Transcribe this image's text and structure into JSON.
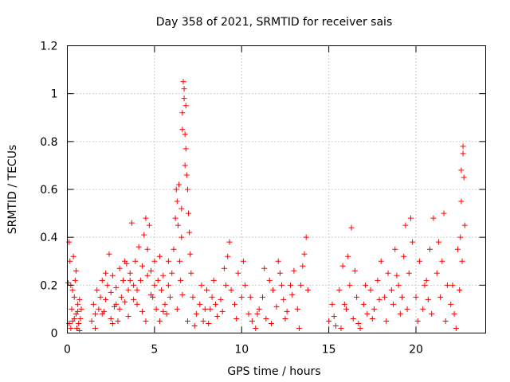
{
  "chart_data": {
    "type": "scatter",
    "title": "Day 358 of 2021, SRMTID for receiver sais",
    "xlabel": "GPS time / hours",
    "ylabel": "SRMTID / TECUs",
    "xlim": [
      0,
      24
    ],
    "ylim": [
      0,
      1.2
    ],
    "xticks": [
      0,
      5,
      10,
      15,
      20
    ],
    "xtick_labels": [
      "0",
      "5",
      "10",
      "15",
      "20"
    ],
    "yticks": [
      0,
      0.2,
      0.4,
      0.6,
      0.8,
      1,
      1.2
    ],
    "ytick_labels": [
      "0",
      "0.2",
      "0.4",
      "0.6",
      "0.8",
      "1",
      "1.2"
    ],
    "grid": true,
    "marker": "plus",
    "series": [
      {
        "name": "SRMTID",
        "color": "#ff0000",
        "points": [
          [
            0.05,
            0.21
          ],
          [
            0.1,
            0.38
          ],
          [
            0.15,
            0.3
          ],
          [
            0.2,
            0.2
          ],
          [
            0.25,
            0.1
          ],
          [
            0.3,
            0.05
          ],
          [
            0.35,
            0.32
          ],
          [
            0.4,
            0.15
          ],
          [
            0.45,
            0.22
          ],
          [
            0.5,
            0.08
          ],
          [
            0.55,
            0.02
          ],
          [
            0.6,
            0.12
          ],
          [
            0.65,
            0.04
          ],
          [
            0.7,
            0.14
          ],
          [
            0.75,
            0.06
          ],
          [
            0.8,
            0.1
          ],
          [
            0.1,
            0.04
          ],
          [
            0.2,
            0.02
          ],
          [
            0.3,
            0.18
          ],
          [
            0.4,
            0.06
          ],
          [
            0.5,
            0.26
          ],
          [
            0.6,
            0.09
          ],
          [
            0.7,
            0.01
          ],
          [
            1.4,
            0.05
          ],
          [
            1.5,
            0.12
          ],
          [
            1.6,
            0.08
          ],
          [
            1.7,
            0.18
          ],
          [
            1.8,
            0.1
          ],
          [
            1.9,
            0.15
          ],
          [
            2.0,
            0.22
          ],
          [
            2.1,
            0.09
          ],
          [
            2.2,
            0.14
          ],
          [
            2.3,
            0.2
          ],
          [
            2.4,
            0.33
          ],
          [
            2.5,
            0.17
          ],
          [
            2.6,
            0.24
          ],
          [
            2.7,
            0.11
          ],
          [
            2.8,
            0.19
          ],
          [
            2.9,
            0.05
          ],
          [
            3.0,
            0.27
          ],
          [
            3.1,
            0.15
          ],
          [
            3.2,
            0.22
          ],
          [
            3.3,
            0.13
          ],
          [
            3.4,
            0.29
          ],
          [
            3.5,
            0.18
          ],
          [
            3.6,
            0.25
          ],
          [
            3.7,
            0.46
          ],
          [
            3.8,
            0.2
          ],
          [
            3.9,
            0.3
          ],
          [
            4.0,
            0.12
          ],
          [
            4.1,
            0.36
          ],
          [
            4.2,
            0.22
          ],
          [
            4.3,
            0.28
          ],
          [
            4.4,
            0.41
          ],
          [
            4.5,
            0.48
          ],
          [
            4.6,
            0.35
          ],
          [
            4.7,
            0.45
          ],
          [
            4.8,
            0.26
          ],
          [
            4.9,
            0.15
          ],
          [
            5.0,
            0.3
          ],
          [
            5.1,
            0.1
          ],
          [
            5.2,
            0.22
          ],
          [
            5.3,
            0.32
          ],
          [
            5.4,
            0.18
          ],
          [
            5.5,
            0.24
          ],
          [
            5.6,
            0.12
          ],
          [
            5.7,
            0.08
          ],
          [
            5.8,
            0.2
          ],
          [
            5.9,
            0.15
          ],
          [
            1.6,
            0.02
          ],
          [
            2.0,
            0.08
          ],
          [
            2.5,
            0.06
          ],
          [
            3.0,
            0.1
          ],
          [
            3.5,
            0.07
          ],
          [
            4.0,
            0.18
          ],
          [
            4.5,
            0.05
          ],
          [
            5.0,
            0.2
          ],
          [
            5.5,
            0.09
          ],
          [
            2.2,
            0.25
          ],
          [
            2.8,
            0.12
          ],
          [
            3.3,
            0.3
          ],
          [
            3.8,
            0.14
          ],
          [
            4.3,
            0.09
          ],
          [
            4.8,
            0.16
          ],
          [
            5.3,
            0.05
          ],
          [
            5.8,
            0.3
          ],
          [
            2.6,
            0.04
          ],
          [
            3.6,
            0.22
          ],
          [
            4.6,
            0.24
          ],
          [
            6.0,
            0.25
          ],
          [
            6.1,
            0.35
          ],
          [
            6.2,
            0.48
          ],
          [
            6.25,
            0.6
          ],
          [
            6.3,
            0.55
          ],
          [
            6.35,
            0.45
          ],
          [
            6.4,
            0.62
          ],
          [
            6.45,
            0.3
          ],
          [
            6.5,
            0.22
          ],
          [
            6.55,
            0.4
          ],
          [
            6.6,
            0.85
          ],
          [
            6.65,
            1.05
          ],
          [
            6.7,
            0.98
          ],
          [
            6.75,
            0.83
          ],
          [
            6.8,
            0.77
          ],
          [
            6.85,
            0.66
          ],
          [
            6.9,
            0.6
          ],
          [
            6.95,
            0.5
          ],
          [
            7.0,
            0.42
          ],
          [
            7.05,
            0.33
          ],
          [
            7.1,
            0.25
          ],
          [
            6.3,
            0.1
          ],
          [
            6.6,
            0.16
          ],
          [
            6.9,
            0.05
          ],
          [
            6.7,
            1.02
          ],
          [
            6.6,
            0.92
          ],
          [
            6.8,
            0.95
          ],
          [
            6.75,
            0.7
          ],
          [
            6.55,
            0.52
          ],
          [
            7.2,
            0.15
          ],
          [
            7.4,
            0.08
          ],
          [
            7.6,
            0.12
          ],
          [
            7.8,
            0.05
          ],
          [
            8.0,
            0.18
          ],
          [
            8.2,
            0.1
          ],
          [
            8.4,
            0.22
          ],
          [
            8.6,
            0.07
          ],
          [
            8.8,
            0.14
          ],
          [
            9.0,
            0.27
          ],
          [
            9.2,
            0.32
          ],
          [
            9.4,
            0.18
          ],
          [
            9.6,
            0.12
          ],
          [
            9.8,
            0.25
          ],
          [
            10.0,
            0.15
          ],
          [
            10.2,
            0.2
          ],
          [
            10.4,
            0.08
          ],
          [
            10.6,
            0.05
          ],
          [
            10.8,
            0.02
          ],
          [
            11.0,
            0.1
          ],
          [
            11.2,
            0.15
          ],
          [
            11.4,
            0.06
          ],
          [
            11.6,
            0.22
          ],
          [
            11.8,
            0.18
          ],
          [
            12.0,
            0.11
          ],
          [
            12.2,
            0.25
          ],
          [
            12.4,
            0.14
          ],
          [
            12.6,
            0.09
          ],
          [
            12.8,
            0.2
          ],
          [
            13.0,
            0.26
          ],
          [
            13.2,
            0.1
          ],
          [
            13.4,
            0.2
          ],
          [
            13.6,
            0.33
          ],
          [
            13.8,
            0.18
          ],
          [
            7.3,
            0.03
          ],
          [
            7.7,
            0.2
          ],
          [
            8.1,
            0.04
          ],
          [
            8.5,
            0.12
          ],
          [
            8.9,
            0.09
          ],
          [
            9.3,
            0.38
          ],
          [
            9.7,
            0.06
          ],
          [
            10.1,
            0.3
          ],
          [
            10.5,
            0.15
          ],
          [
            10.9,
            0.08
          ],
          [
            11.3,
            0.27
          ],
          [
            11.7,
            0.04
          ],
          [
            12.1,
            0.3
          ],
          [
            12.5,
            0.06
          ],
          [
            12.9,
            0.16
          ],
          [
            13.3,
            0.02
          ],
          [
            13.7,
            0.4
          ],
          [
            13.5,
            0.28
          ],
          [
            12.3,
            0.2
          ],
          [
            9.1,
            0.2
          ],
          [
            8.3,
            0.15
          ],
          [
            7.9,
            0.1
          ],
          [
            15.0,
            0.05
          ],
          [
            15.2,
            0.12
          ],
          [
            15.4,
            0.03
          ],
          [
            15.6,
            0.18
          ],
          [
            15.8,
            0.28
          ],
          [
            16.0,
            0.1
          ],
          [
            16.2,
            0.2
          ],
          [
            16.4,
            0.06
          ],
          [
            16.6,
            0.15
          ],
          [
            16.8,
            0.02
          ],
          [
            17.0,
            0.12
          ],
          [
            17.2,
            0.08
          ],
          [
            17.4,
            0.18
          ],
          [
            17.6,
            0.1
          ],
          [
            17.8,
            0.22
          ],
          [
            18.0,
            0.3
          ],
          [
            18.2,
            0.15
          ],
          [
            18.4,
            0.25
          ],
          [
            18.6,
            0.18
          ],
          [
            18.8,
            0.35
          ],
          [
            19.0,
            0.2
          ],
          [
            19.2,
            0.15
          ],
          [
            19.4,
            0.45
          ],
          [
            19.6,
            0.25
          ],
          [
            19.8,
            0.38
          ],
          [
            20.0,
            0.15
          ],
          [
            20.2,
            0.3
          ],
          [
            20.4,
            0.1
          ],
          [
            20.6,
            0.22
          ],
          [
            20.8,
            0.35
          ],
          [
            21.0,
            0.48
          ],
          [
            21.2,
            0.25
          ],
          [
            21.4,
            0.15
          ],
          [
            21.6,
            0.5
          ],
          [
            21.8,
            0.2
          ],
          [
            22.0,
            0.12
          ],
          [
            22.2,
            0.08
          ],
          [
            22.4,
            0.35
          ],
          [
            22.6,
            0.55
          ],
          [
            22.7,
            0.75
          ],
          [
            22.75,
            0.65
          ],
          [
            22.8,
            0.45
          ],
          [
            22.65,
            0.3
          ],
          [
            15.3,
            0.07
          ],
          [
            15.7,
            0.02
          ],
          [
            16.1,
            0.32
          ],
          [
            16.3,
            0.44
          ],
          [
            16.7,
            0.04
          ],
          [
            17.1,
            0.2
          ],
          [
            17.5,
            0.06
          ],
          [
            17.9,
            0.14
          ],
          [
            18.3,
            0.05
          ],
          [
            18.7,
            0.12
          ],
          [
            19.1,
            0.08
          ],
          [
            19.3,
            0.32
          ],
          [
            19.7,
            0.48
          ],
          [
            20.1,
            0.05
          ],
          [
            20.5,
            0.2
          ],
          [
            20.9,
            0.08
          ],
          [
            21.3,
            0.38
          ],
          [
            21.7,
            0.05
          ],
          [
            22.1,
            0.2
          ],
          [
            22.3,
            0.02
          ],
          [
            22.5,
            0.18
          ],
          [
            22.7,
            0.78
          ],
          [
            22.6,
            0.68
          ],
          [
            22.55,
            0.4
          ],
          [
            19.5,
            0.1
          ],
          [
            20.7,
            0.14
          ],
          [
            21.5,
            0.3
          ],
          [
            18.9,
            0.24
          ],
          [
            16.5,
            0.26
          ],
          [
            15.9,
            0.12
          ]
        ]
      }
    ]
  }
}
